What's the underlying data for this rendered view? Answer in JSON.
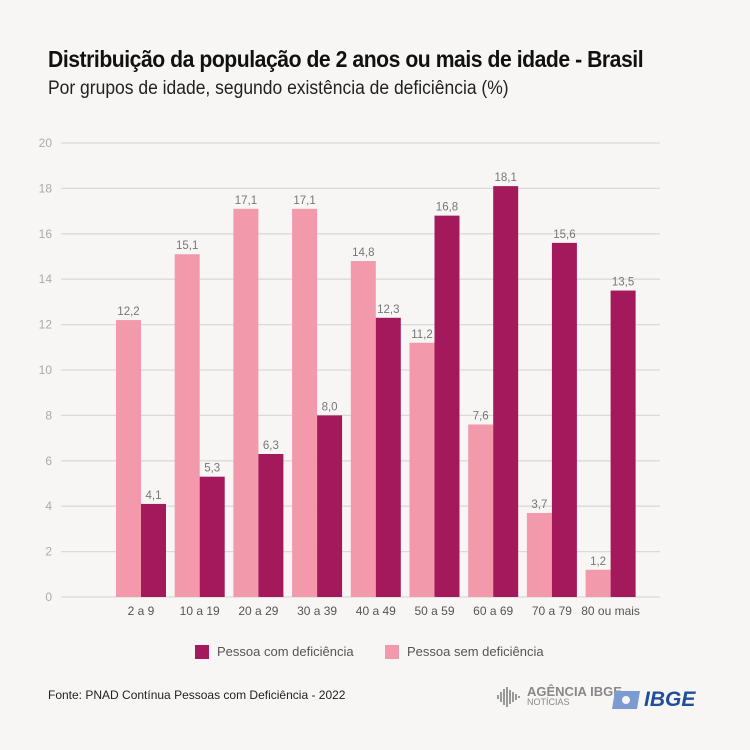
{
  "chart_data": {
    "type": "bar",
    "title": "Distribuição da população de 2 anos ou mais de idade - Brasil",
    "subtitle": "Por grupos de idade, segundo existência de deficiência (%)",
    "categories": [
      "2 a 9",
      "10 a 19",
      "20 a 29",
      "30 a 39",
      "40 a 49",
      "50 a 59",
      "60 a 69",
      "70 a 79",
      "80 ou mais"
    ],
    "series": [
      {
        "name": "Pessoa sem deficiência",
        "color": "#f29aac",
        "values": [
          12.2,
          15.1,
          17.1,
          17.1,
          14.8,
          11.2,
          7.6,
          3.7,
          1.2
        ],
        "labels": [
          "12,2",
          "15,1",
          "17,1",
          "17,1",
          "14,8",
          "11,2",
          "7,6",
          "3,7",
          "1,2"
        ]
      },
      {
        "name": "Pessoa com deficiência",
        "color": "#a3195b",
        "values": [
          4.1,
          5.3,
          6.3,
          8.0,
          12.3,
          16.8,
          18.1,
          15.6,
          13.5
        ],
        "labels": [
          "4,1",
          "5,3",
          "6,3",
          "8,0",
          "12,3",
          "16,8",
          "18,1",
          "15,6",
          "13,5"
        ]
      }
    ],
    "ylim": [
      0,
      20
    ],
    "yticks": [
      "0",
      "2",
      "4",
      "6",
      "8",
      "10",
      "12",
      "14",
      "16",
      "18",
      "20"
    ],
    "grid": true,
    "legend": "bottom"
  },
  "source": "Fonte: PNAD Contínua Pessoas com Deficiência - 2022",
  "logos": {
    "agencia": "AGÊNCIA IBGE",
    "agencia_sub": "NOTÍCIAS",
    "ibge": "IBGE"
  }
}
